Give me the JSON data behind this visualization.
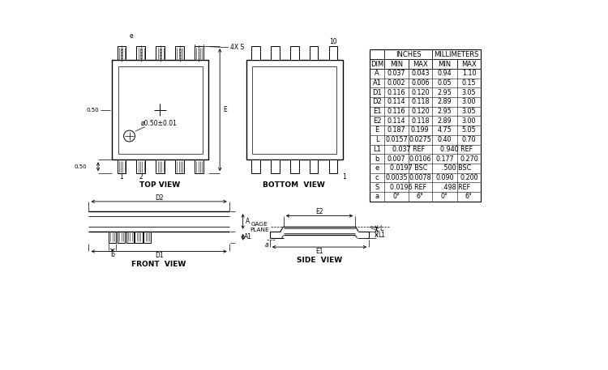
{
  "bg_color": "#ffffff",
  "table": {
    "rows": [
      [
        "A",
        "0.037",
        "0.043",
        "0.94",
        "1.10"
      ],
      [
        "A1",
        "0.002",
        "0.006",
        "0.05",
        "0.15"
      ],
      [
        "D1",
        "0.116",
        "0.120",
        "2.95",
        "3.05"
      ],
      [
        "D2",
        "0.114",
        "0.118",
        "2.89",
        "3.00"
      ],
      [
        "E1",
        "0.116",
        "0.120",
        "2.95",
        "3.05"
      ],
      [
        "E2",
        "0.114",
        "0.118",
        "2.89",
        "3.00"
      ],
      [
        "E",
        "0.187",
        "0.199",
        "4.75",
        "5.05"
      ],
      [
        "L",
        "0.0157",
        "0.0275",
        "0.40",
        "0.70"
      ],
      [
        "L1",
        "0.037 REF",
        "",
        "0.940 REF",
        ""
      ],
      [
        "b",
        "0.007",
        "0.0106",
        "0.177",
        "0.270"
      ],
      [
        "e",
        "0.0197 BSC",
        "",
        ".500 BSC",
        ""
      ],
      [
        "c",
        "0.0035",
        "0.0078",
        "0.090",
        "0.200"
      ],
      [
        "S",
        "0.0196 REF",
        "",
        ".498 REF",
        ""
      ],
      [
        "a",
        "0°",
        "6°",
        "0°",
        "6°"
      ]
    ]
  }
}
